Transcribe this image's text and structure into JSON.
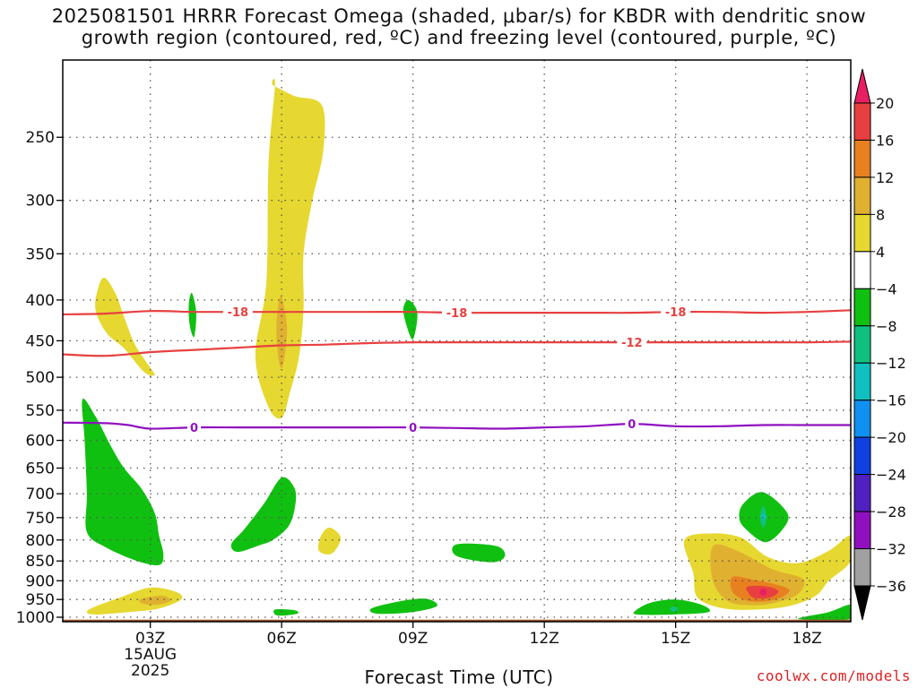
{
  "title": {
    "line1": "2025081501 HRRR Forecast Omega (shaded, μbar/s) for KBDR with dendritic snow",
    "line2": "growth region (contoured, red, ºC) and freezing level (contoured, purple, ºC)"
  },
  "watermark": "coolwx.com/models",
  "chart_data": {
    "type": "heatmap",
    "xlabel": "Forecast Time (UTC)",
    "x_ticks": [
      {
        "hour": 3,
        "label": "03Z",
        "sub": [
          "15AUG",
          "2025"
        ]
      },
      {
        "hour": 6,
        "label": "06Z"
      },
      {
        "hour": 9,
        "label": "09Z"
      },
      {
        "hour": 12,
        "label": "12Z"
      },
      {
        "hour": 15,
        "label": "15Z"
      },
      {
        "hour": 18,
        "label": "18Z"
      }
    ],
    "xlim": [
      1,
      19
    ],
    "y_ticks": [
      250,
      300,
      350,
      400,
      450,
      500,
      550,
      600,
      650,
      700,
      750,
      800,
      850,
      900,
      950,
      1000
    ],
    "ylim": [
      1013,
      200
    ],
    "y_scale": "log",
    "grid": true,
    "colorbar": {
      "labels": [
        "20",
        "16",
        "12",
        "8",
        "4",
        "−4",
        "−8",
        "−12",
        "−16",
        "−20",
        "−24",
        "−28",
        "−32",
        "−36"
      ],
      "colors": [
        "#e81f63",
        "#e84040",
        "#e88020",
        "#e0b030",
        "#e6d830",
        "#ffffff",
        "#10c010",
        "#10c080",
        "#10c0c0",
        "#1090f0",
        "#1040e0",
        "#5020c0",
        "#9010c0",
        "#a0a0a0",
        "#000000"
      ]
    },
    "ground": {
      "color": "#a0522d",
      "top_hpa": 1007
    },
    "contours": [
      {
        "name": "-18",
        "label": "-18",
        "color": "#e84040",
        "points": [
          [
            1,
            417
          ],
          [
            2,
            416
          ],
          [
            3,
            413
          ],
          [
            4,
            414
          ],
          [
            5,
            414
          ],
          [
            6,
            414
          ],
          [
            7,
            414
          ],
          [
            8,
            414
          ],
          [
            9,
            414
          ],
          [
            10,
            415
          ],
          [
            11,
            415
          ],
          [
            12,
            415
          ],
          [
            13,
            415
          ],
          [
            14,
            415
          ],
          [
            15,
            414
          ],
          [
            16,
            414
          ],
          [
            17,
            415
          ],
          [
            18,
            414
          ],
          [
            19,
            412
          ]
        ],
        "label_hours": [
          5,
          10,
          15
        ]
      },
      {
        "name": "-12",
        "label": "-12",
        "color": "#e84040",
        "points": [
          [
            1,
            468
          ],
          [
            2,
            470
          ],
          [
            3,
            465
          ],
          [
            4,
            462
          ],
          [
            5,
            459
          ],
          [
            6,
            456
          ],
          [
            7,
            455
          ],
          [
            8,
            453
          ],
          [
            9,
            452
          ],
          [
            10,
            452
          ],
          [
            11,
            452
          ],
          [
            12,
            452
          ],
          [
            13,
            452
          ],
          [
            14,
            452
          ],
          [
            15,
            452
          ],
          [
            16,
            452
          ],
          [
            17,
            452
          ],
          [
            18,
            452
          ],
          [
            19,
            451
          ]
        ],
        "label_hours": [
          14
        ]
      },
      {
        "name": "0",
        "label": "0",
        "color": "#9010c0",
        "points": [
          [
            1,
            570
          ],
          [
            2,
            571
          ],
          [
            2.5,
            574
          ],
          [
            3,
            580
          ],
          [
            4,
            578
          ],
          [
            5,
            578
          ],
          [
            6,
            578
          ],
          [
            7,
            578
          ],
          [
            8,
            578
          ],
          [
            9,
            578
          ],
          [
            10,
            579
          ],
          [
            11,
            580
          ],
          [
            12,
            578
          ],
          [
            13,
            576
          ],
          [
            14,
            572
          ],
          [
            15,
            576
          ],
          [
            16,
            576
          ],
          [
            17,
            574
          ],
          [
            18,
            574
          ],
          [
            19,
            574
          ]
        ],
        "label_hours": [
          4,
          9,
          14
        ]
      }
    ],
    "omega_regions": [
      {
        "name": "up-4-early",
        "value": 4,
        "color": "#e6d830",
        "points": [
          [
            1.95,
            375
          ],
          [
            2.2,
            392
          ],
          [
            2.4,
            420
          ],
          [
            2.65,
            455
          ],
          [
            2.95,
            482
          ],
          [
            3.1,
            497
          ],
          [
            2.85,
            492
          ],
          [
            2.4,
            460
          ],
          [
            2.0,
            440
          ],
          [
            1.75,
            412
          ],
          [
            1.8,
            388
          ]
        ]
      },
      {
        "name": "up-4-06z",
        "value": 4,
        "color": "#e6d830",
        "points": [
          [
            5.8,
            215
          ],
          [
            6.3,
            222
          ],
          [
            6.92,
            228
          ],
          [
            6.95,
            260
          ],
          [
            6.7,
            300
          ],
          [
            6.5,
            350
          ],
          [
            6.5,
            410
          ],
          [
            6.4,
            470
          ],
          [
            6.2,
            520
          ],
          [
            6.0,
            562
          ],
          [
            5.7,
            545
          ],
          [
            5.4,
            470
          ],
          [
            5.65,
            380
          ],
          [
            5.7,
            270
          ],
          [
            5.85,
            215
          ]
        ]
      },
      {
        "name": "up-8-06z",
        "value": 8,
        "color": "#e0b030",
        "points": [
          [
            5.98,
            395
          ],
          [
            6.12,
            430
          ],
          [
            6.08,
            465
          ],
          [
            6.0,
            487
          ],
          [
            5.92,
            470
          ],
          [
            5.88,
            430
          ]
        ]
      },
      {
        "name": "up-4-0730",
        "value": 4,
        "color": "#e6d830",
        "points": [
          [
            7.1,
            772
          ],
          [
            7.35,
            795
          ],
          [
            7.15,
            832
          ],
          [
            6.85,
            825
          ],
          [
            6.9,
            790
          ]
        ]
      },
      {
        "name": "up-4-03z-low",
        "value": 4,
        "color": "#e6d830",
        "points": [
          [
            1.6,
            978
          ],
          [
            2.3,
            945
          ],
          [
            3.0,
            918
          ],
          [
            3.6,
            930
          ],
          [
            3.7,
            950
          ],
          [
            3.2,
            975
          ],
          [
            2.5,
            985
          ],
          [
            1.7,
            992
          ]
        ]
      },
      {
        "name": "up-8-03z-low",
        "value": 8,
        "color": "#e0b030",
        "points": [
          [
            2.8,
            948
          ],
          [
            3.3,
            940
          ],
          [
            3.45,
            955
          ],
          [
            3.1,
            965
          ],
          [
            2.8,
            960
          ]
        ]
      },
      {
        "name": "up-4-late",
        "value": 4,
        "color": "#e6d830",
        "points": [
          [
            15.2,
            800
          ],
          [
            15.8,
            785
          ],
          [
            16.5,
            795
          ],
          [
            17.1,
            840
          ],
          [
            17.8,
            855
          ],
          [
            18.5,
            825
          ],
          [
            19,
            790
          ],
          [
            19,
            850
          ],
          [
            18.5,
            900
          ],
          [
            18.2,
            940
          ],
          [
            17.6,
            968
          ],
          [
            16.9,
            978
          ],
          [
            16.1,
            975
          ],
          [
            15.5,
            945
          ],
          [
            15.4,
            880
          ]
        ]
      },
      {
        "name": "up-8-late",
        "value": 8,
        "color": "#e0b030",
        "points": [
          [
            15.85,
            815
          ],
          [
            16.4,
            825
          ],
          [
            17.2,
            870
          ],
          [
            17.9,
            895
          ],
          [
            17.8,
            935
          ],
          [
            17.3,
            958
          ],
          [
            16.8,
            966
          ],
          [
            16.2,
            955
          ],
          [
            15.85,
            900
          ]
        ]
      },
      {
        "name": "up-12-late",
        "value": 12,
        "color": "#e88020",
        "points": [
          [
            16.3,
            890
          ],
          [
            16.8,
            898
          ],
          [
            17.3,
            910
          ],
          [
            17.6,
            925
          ],
          [
            17.4,
            945
          ],
          [
            17.0,
            956
          ],
          [
            16.6,
            952
          ],
          [
            16.3,
            930
          ]
        ]
      },
      {
        "name": "up-16-late",
        "value": 16,
        "color": "#e84040",
        "points": [
          [
            16.65,
            915
          ],
          [
            17.1,
            915
          ],
          [
            17.35,
            928
          ],
          [
            17.15,
            945
          ],
          [
            16.8,
            946
          ],
          [
            16.65,
            930
          ]
        ]
      },
      {
        "name": "dn-early-big",
        "value": -4,
        "color": "#10c010",
        "points": [
          [
            1.45,
            533
          ],
          [
            1.75,
            560
          ],
          [
            2.1,
            610
          ],
          [
            2.4,
            650
          ],
          [
            2.8,
            690
          ],
          [
            3.1,
            740
          ],
          [
            3.2,
            790
          ],
          [
            3.3,
            835
          ],
          [
            3.2,
            860
          ],
          [
            2.7,
            850
          ],
          [
            2.0,
            818
          ],
          [
            1.55,
            782
          ],
          [
            1.55,
            700
          ],
          [
            1.5,
            600
          ]
        ]
      },
      {
        "name": "dn-0415",
        "value": -4,
        "color": "#10c010",
        "points": [
          [
            3.95,
            392
          ],
          [
            4.05,
            415
          ],
          [
            4.0,
            445
          ],
          [
            3.9,
            430
          ],
          [
            3.88,
            405
          ]
        ]
      },
      {
        "name": "dn-0900",
        "value": -4,
        "color": "#10c010",
        "points": [
          [
            8.9,
            400
          ],
          [
            9.1,
            415
          ],
          [
            9.0,
            448
          ],
          [
            8.85,
            430
          ],
          [
            8.78,
            410
          ]
        ]
      },
      {
        "name": "dn-06z-low",
        "value": -4,
        "color": "#10c010",
        "points": [
          [
            6.0,
            668
          ],
          [
            6.3,
            690
          ],
          [
            6.3,
            730
          ],
          [
            6.15,
            770
          ],
          [
            5.8,
            800
          ],
          [
            5.5,
            812
          ],
          [
            5.0,
            828
          ],
          [
            4.85,
            810
          ],
          [
            5.15,
            775
          ],
          [
            5.6,
            720
          ]
        ]
      },
      {
        "name": "dn-1030",
        "value": -4,
        "color": "#10c010",
        "points": [
          [
            10.0,
            810
          ],
          [
            10.9,
            814
          ],
          [
            11.1,
            838
          ],
          [
            10.8,
            853
          ],
          [
            10.0,
            838
          ]
        ]
      },
      {
        "name": "dn-0630-sfc",
        "value": -4,
        "color": "#10c010",
        "points": [
          [
            5.85,
            978
          ],
          [
            6.3,
            980
          ],
          [
            6.35,
            990
          ],
          [
            5.9,
            995
          ]
        ]
      },
      {
        "name": "dn-0900-sfc",
        "value": -4,
        "color": "#10c010",
        "points": [
          [
            8.05,
            975
          ],
          [
            8.7,
            955
          ],
          [
            9.3,
            948
          ],
          [
            9.55,
            968
          ],
          [
            9.0,
            985
          ],
          [
            8.2,
            990
          ]
        ]
      },
      {
        "name": "dn-15z-sfc",
        "value": -4,
        "color": "#10c010",
        "points": [
          [
            14.05,
            985
          ],
          [
            14.4,
            960
          ],
          [
            15.0,
            950
          ],
          [
            15.6,
            965
          ],
          [
            15.75,
            985
          ],
          [
            15.0,
            992
          ],
          [
            14.2,
            993
          ]
        ]
      },
      {
        "name": "dn-15z-core",
        "value": -8,
        "color": "#10c080",
        "points": [
          [
            14.92,
            970
          ],
          [
            15.05,
            975
          ],
          [
            14.98,
            985
          ],
          [
            14.88,
            978
          ]
        ]
      },
      {
        "name": "dn-1700",
        "value": -4,
        "color": "#10c010",
        "points": [
          [
            16.55,
            720
          ],
          [
            17.0,
            697
          ],
          [
            17.55,
            740
          ],
          [
            17.45,
            775
          ],
          [
            17.05,
            805
          ],
          [
            16.6,
            775
          ],
          [
            16.45,
            750
          ]
        ]
      },
      {
        "name": "dn-1700-core",
        "value": -8,
        "color": "#10c080",
        "points": [
          [
            17.0,
            725
          ],
          [
            17.08,
            750
          ],
          [
            17.0,
            772
          ],
          [
            16.93,
            750
          ]
        ]
      },
      {
        "name": "dn-1830-sfc",
        "value": -4,
        "color": "#10c010",
        "points": [
          [
            17.8,
            1005
          ],
          [
            18.5,
            985
          ],
          [
            19,
            965
          ],
          [
            19,
            1005
          ]
        ]
      }
    ]
  }
}
